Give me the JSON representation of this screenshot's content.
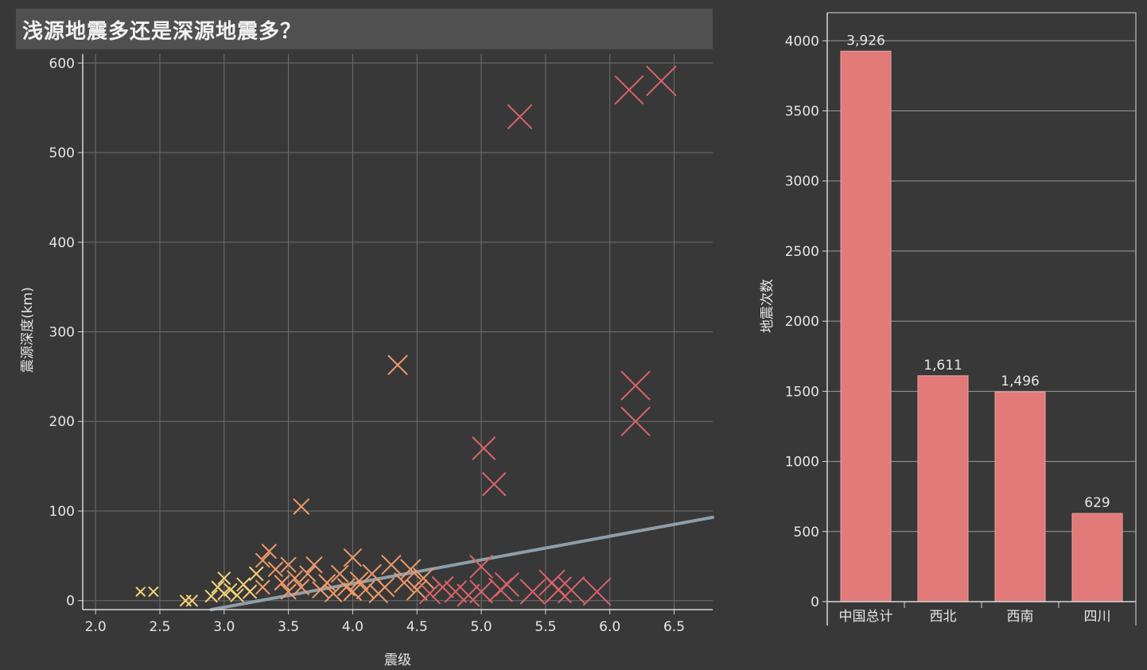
{
  "title": "浅源地震多还是深源地震多？",
  "colors": {
    "background": "#383838",
    "title_bg": "#505050",
    "grid": "#6e6e6e",
    "axis": "#d8d8d8",
    "bar": "#e27a7a",
    "trend": "#8f9ea8",
    "marker_low": "#f4d27a",
    "marker_mid": "#ef9a6a",
    "marker_high": "#d9636b"
  },
  "chart_data": [
    {
      "type": "scatter",
      "title": "",
      "xlabel": "震级",
      "ylabel": "震源深度(km)",
      "xlim": [
        1.9,
        6.8
      ],
      "ylim": [
        -10,
        610
      ],
      "xticks": [
        "2.0",
        "2.5",
        "3.0",
        "3.5",
        "4.0",
        "4.5",
        "5.0",
        "5.5",
        "6.0",
        "6.5"
      ],
      "yticks": [
        "0",
        "100",
        "200",
        "300",
        "400",
        "500",
        "600"
      ],
      "grid": true,
      "trend_line": {
        "x": [
          2.9,
          6.8
        ],
        "y": [
          -10,
          93
        ]
      },
      "points": [
        {
          "x": 2.35,
          "y": 10
        },
        {
          "x": 2.45,
          "y": 10
        },
        {
          "x": 2.7,
          "y": 0
        },
        {
          "x": 2.75,
          "y": 0
        },
        {
          "x": 2.9,
          "y": 5
        },
        {
          "x": 2.95,
          "y": 15
        },
        {
          "x": 3.0,
          "y": 25
        },
        {
          "x": 3.0,
          "y": 8
        },
        {
          "x": 3.05,
          "y": 12
        },
        {
          "x": 3.1,
          "y": 6
        },
        {
          "x": 3.15,
          "y": 18
        },
        {
          "x": 3.2,
          "y": 10
        },
        {
          "x": 3.25,
          "y": 30
        },
        {
          "x": 3.3,
          "y": 45
        },
        {
          "x": 3.3,
          "y": 15
        },
        {
          "x": 3.35,
          "y": 55
        },
        {
          "x": 3.4,
          "y": 35
        },
        {
          "x": 3.45,
          "y": 20
        },
        {
          "x": 3.5,
          "y": 40
        },
        {
          "x": 3.5,
          "y": 10
        },
        {
          "x": 3.55,
          "y": 25
        },
        {
          "x": 3.6,
          "y": 105
        },
        {
          "x": 3.6,
          "y": 15
        },
        {
          "x": 3.65,
          "y": 30
        },
        {
          "x": 3.7,
          "y": 40
        },
        {
          "x": 3.75,
          "y": 12
        },
        {
          "x": 3.8,
          "y": 20
        },
        {
          "x": 3.85,
          "y": 8
        },
        {
          "x": 3.9,
          "y": 30
        },
        {
          "x": 3.95,
          "y": 15
        },
        {
          "x": 4.0,
          "y": 48
        },
        {
          "x": 4.0,
          "y": 10
        },
        {
          "x": 4.05,
          "y": 22
        },
        {
          "x": 4.1,
          "y": 12
        },
        {
          "x": 4.15,
          "y": 30
        },
        {
          "x": 4.2,
          "y": 8
        },
        {
          "x": 4.25,
          "y": 15
        },
        {
          "x": 4.3,
          "y": 40
        },
        {
          "x": 4.35,
          "y": 263
        },
        {
          "x": 4.4,
          "y": 20
        },
        {
          "x": 4.45,
          "y": 35
        },
        {
          "x": 4.5,
          "y": 12
        },
        {
          "x": 4.55,
          "y": 25
        },
        {
          "x": 4.6,
          "y": 8
        },
        {
          "x": 4.7,
          "y": 15
        },
        {
          "x": 4.8,
          "y": 10
        },
        {
          "x": 4.9,
          "y": 6
        },
        {
          "x": 5.0,
          "y": 38
        },
        {
          "x": 5.0,
          "y": 10
        },
        {
          "x": 5.02,
          "y": 170
        },
        {
          "x": 5.1,
          "y": 130
        },
        {
          "x": 5.15,
          "y": 12
        },
        {
          "x": 5.2,
          "y": 18
        },
        {
          "x": 5.3,
          "y": 540
        },
        {
          "x": 5.4,
          "y": 10
        },
        {
          "x": 5.55,
          "y": 20
        },
        {
          "x": 5.6,
          "y": 12
        },
        {
          "x": 5.7,
          "y": 12
        },
        {
          "x": 5.9,
          "y": 10
        },
        {
          "x": 6.15,
          "y": 570
        },
        {
          "x": 6.2,
          "y": 240
        },
        {
          "x": 6.2,
          "y": 200
        },
        {
          "x": 6.4,
          "y": 580
        }
      ]
    },
    {
      "type": "bar",
      "title": "",
      "xlabel": "",
      "ylabel": "地震次数",
      "categories": [
        "中国总计",
        "西北",
        "西南",
        "四川"
      ],
      "values": [
        3926,
        1611,
        1496,
        629
      ],
      "value_labels": [
        "3,926",
        "1,611",
        "1,496",
        "629"
      ],
      "ylim": [
        0,
        4200
      ],
      "yticks": [
        "0",
        "500",
        "1000",
        "1500",
        "2000",
        "2500",
        "3000",
        "3500",
        "4000"
      ],
      "grid": true
    }
  ]
}
